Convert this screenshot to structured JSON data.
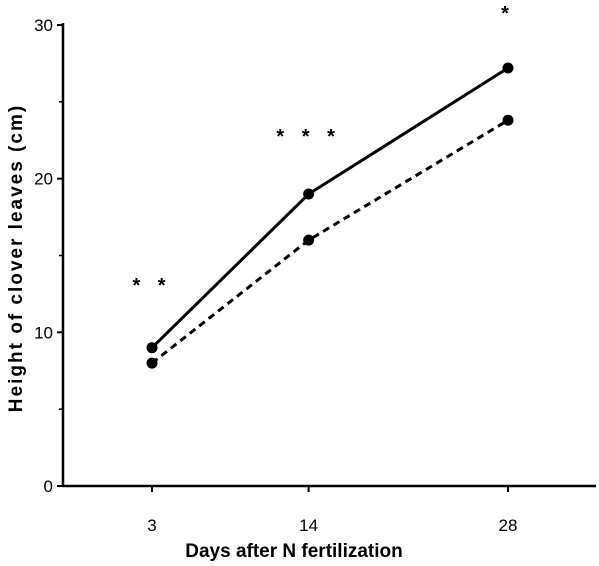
{
  "chart_data": {
    "type": "line",
    "title": "",
    "xlabel": "Days after N fertilization",
    "ylabel": "Height of clover leaves (cm)",
    "categories": [
      "3",
      "14",
      "28"
    ],
    "x": [
      3,
      14,
      28
    ],
    "yticks": [
      "0",
      "10",
      "20",
      "30"
    ],
    "ylim": [
      0,
      30
    ],
    "grid": false,
    "legend": "none",
    "series": [
      {
        "values": [
          9,
          19,
          27.2
        ],
        "style": "solid",
        "color": "#000000"
      },
      {
        "values": [
          8,
          16,
          23.8
        ],
        "style": "dashed",
        "color": "#000000"
      }
    ],
    "annotations": [
      "* *",
      "* * *",
      "*"
    ]
  }
}
